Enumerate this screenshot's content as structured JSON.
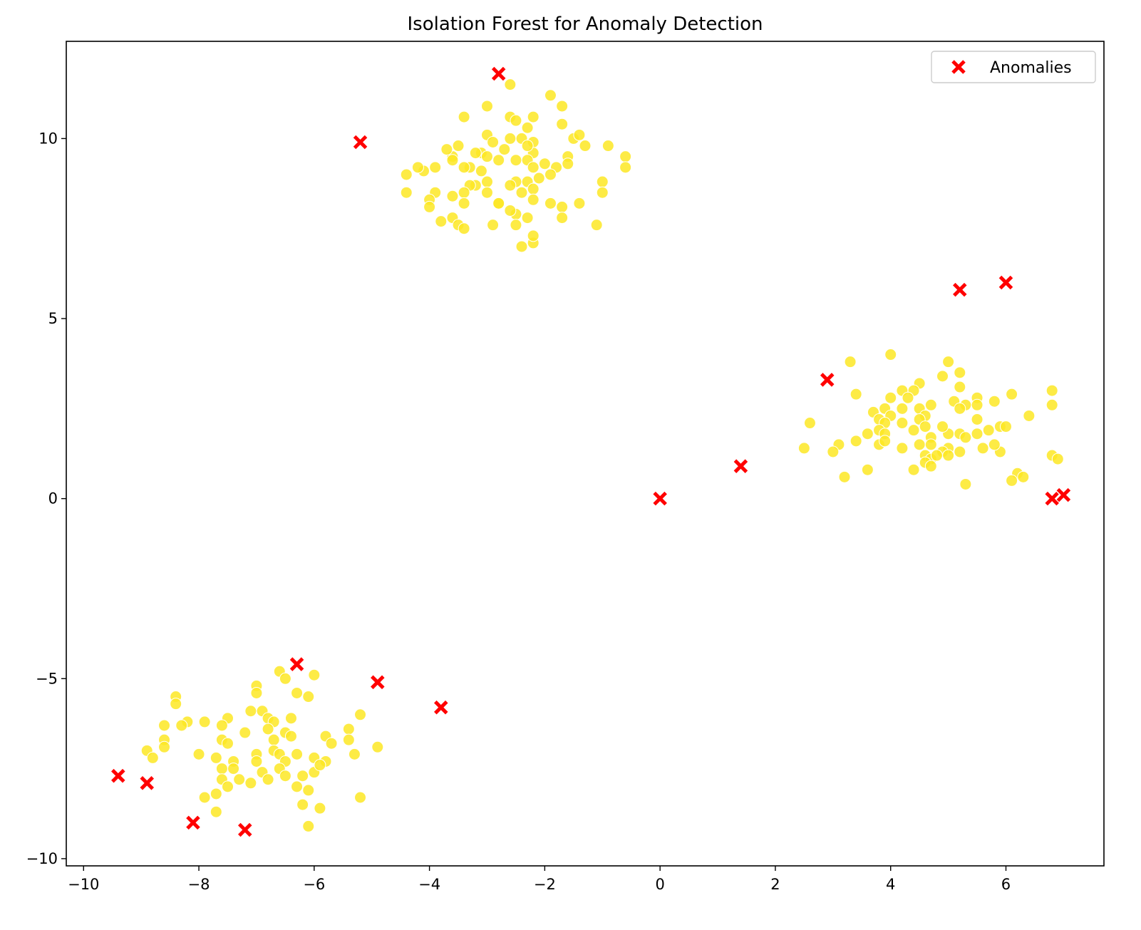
{
  "chart_data": {
    "type": "scatter",
    "title": "Isolation Forest for Anomaly Detection",
    "xlabel": "",
    "ylabel": "",
    "xlim": [
      -10.3,
      7.7
    ],
    "ylim": [
      -10.2,
      12.7
    ],
    "x_ticks": [
      -10,
      -8,
      -6,
      -4,
      -2,
      0,
      2,
      4,
      6
    ],
    "y_ticks": [
      -10,
      -5,
      0,
      5,
      10
    ],
    "x_tick_labels": [
      "−10",
      "−8",
      "−6",
      "−4",
      "−2",
      "0",
      "2",
      "4",
      "6"
    ],
    "y_tick_labels": [
      "−10",
      "−5",
      "0",
      "5",
      "10"
    ],
    "grid": false,
    "legend": {
      "placement": "top-right",
      "entries": [
        "Anomalies"
      ]
    },
    "colors": {
      "normal": "#fde725",
      "anomaly": "#ff0000"
    },
    "series": [
      {
        "role": "normal",
        "marker": "circle",
        "points": [
          [
            -2.6,
            11.5
          ],
          [
            -1.9,
            11.2
          ],
          [
            -1.7,
            10.9
          ],
          [
            -3.0,
            10.9
          ],
          [
            -3.4,
            10.6
          ],
          [
            -2.6,
            10.6
          ],
          [
            -2.2,
            10.6
          ],
          [
            -1.7,
            10.4
          ],
          [
            -2.3,
            10.3
          ],
          [
            -2.5,
            10.5
          ],
          [
            -3.0,
            10.1
          ],
          [
            -2.6,
            10.0
          ],
          [
            -2.4,
            10.0
          ],
          [
            -2.2,
            9.9
          ],
          [
            -1.5,
            10.0
          ],
          [
            -1.4,
            10.1
          ],
          [
            -1.3,
            9.8
          ],
          [
            -0.9,
            9.8
          ],
          [
            -0.6,
            9.5
          ],
          [
            -0.6,
            9.2
          ],
          [
            -1.6,
            9.5
          ],
          [
            -1.6,
            9.3
          ],
          [
            -1.8,
            9.2
          ],
          [
            -2.0,
            9.3
          ],
          [
            -2.2,
            9.6
          ],
          [
            -2.3,
            9.4
          ],
          [
            -2.5,
            9.4
          ],
          [
            -2.7,
            9.7
          ],
          [
            -2.9,
            9.9
          ],
          [
            -3.1,
            9.6
          ],
          [
            -3.2,
            9.6
          ],
          [
            -3.5,
            9.8
          ],
          [
            -3.6,
            9.5
          ],
          [
            -3.7,
            9.7
          ],
          [
            -3.9,
            9.2
          ],
          [
            -4.1,
            9.1
          ],
          [
            -4.2,
            9.2
          ],
          [
            -4.4,
            9.0
          ],
          [
            -3.0,
            9.5
          ],
          [
            -2.8,
            9.4
          ],
          [
            -2.3,
            9.8
          ],
          [
            -2.2,
            9.2
          ],
          [
            -3.3,
            9.2
          ],
          [
            -3.1,
            9.1
          ],
          [
            -3.6,
            9.4
          ],
          [
            -3.4,
            9.2
          ],
          [
            -2.1,
            8.9
          ],
          [
            -1.9,
            9.0
          ],
          [
            -2.3,
            8.8
          ],
          [
            -2.5,
            8.8
          ],
          [
            -2.6,
            8.7
          ],
          [
            -3.0,
            8.8
          ],
          [
            -3.2,
            8.7
          ],
          [
            -3.3,
            8.7
          ],
          [
            -3.4,
            8.5
          ],
          [
            -3.6,
            8.4
          ],
          [
            -3.9,
            8.5
          ],
          [
            -4.4,
            8.5
          ],
          [
            -4.0,
            8.3
          ],
          [
            -4.0,
            8.1
          ],
          [
            -3.4,
            8.2
          ],
          [
            -3.0,
            8.5
          ],
          [
            -2.8,
            8.2
          ],
          [
            -2.4,
            8.5
          ],
          [
            -2.2,
            8.6
          ],
          [
            -2.2,
            8.3
          ],
          [
            -1.9,
            8.2
          ],
          [
            -1.7,
            8.1
          ],
          [
            -1.4,
            8.2
          ],
          [
            -1.0,
            8.8
          ],
          [
            -1.0,
            8.5
          ],
          [
            -1.1,
            7.6
          ],
          [
            -1.7,
            7.8
          ],
          [
            -2.3,
            7.8
          ],
          [
            -2.5,
            7.9
          ],
          [
            -2.6,
            8.0
          ],
          [
            -2.5,
            7.6
          ],
          [
            -2.8,
            8.2
          ],
          [
            -3.6,
            7.8
          ],
          [
            -3.8,
            7.7
          ],
          [
            -3.5,
            7.6
          ],
          [
            -3.4,
            7.5
          ],
          [
            -2.9,
            7.6
          ],
          [
            -2.4,
            7.0
          ],
          [
            -2.2,
            7.1
          ],
          [
            -2.2,
            7.3
          ],
          [
            4.0,
            4.0
          ],
          [
            5.0,
            3.8
          ],
          [
            3.3,
            3.8
          ],
          [
            5.2,
            3.5
          ],
          [
            4.9,
            3.4
          ],
          [
            5.2,
            3.1
          ],
          [
            4.5,
            3.2
          ],
          [
            4.4,
            3.0
          ],
          [
            4.2,
            3.0
          ],
          [
            6.8,
            3.0
          ],
          [
            6.1,
            2.9
          ],
          [
            3.4,
            2.9
          ],
          [
            4.0,
            2.8
          ],
          [
            4.3,
            2.8
          ],
          [
            5.5,
            2.8
          ],
          [
            5.8,
            2.7
          ],
          [
            5.1,
            2.7
          ],
          [
            5.3,
            2.6
          ],
          [
            5.5,
            2.6
          ],
          [
            4.7,
            2.6
          ],
          [
            4.5,
            2.5
          ],
          [
            4.2,
            2.5
          ],
          [
            3.7,
            2.4
          ],
          [
            3.9,
            2.5
          ],
          [
            5.2,
            2.5
          ],
          [
            6.4,
            2.3
          ],
          [
            6.8,
            2.6
          ],
          [
            4.6,
            2.3
          ],
          [
            4.5,
            2.2
          ],
          [
            4.0,
            2.3
          ],
          [
            3.8,
            2.2
          ],
          [
            3.9,
            2.1
          ],
          [
            4.2,
            2.1
          ],
          [
            2.6,
            2.1
          ],
          [
            5.5,
            2.2
          ],
          [
            5.5,
            1.8
          ],
          [
            5.7,
            1.9
          ],
          [
            5.9,
            2.0
          ],
          [
            6.0,
            2.0
          ],
          [
            5.0,
            1.8
          ],
          [
            4.6,
            2.0
          ],
          [
            4.4,
            1.9
          ],
          [
            4.9,
            2.0
          ],
          [
            3.8,
            1.9
          ],
          [
            3.9,
            1.8
          ],
          [
            3.6,
            1.8
          ],
          [
            4.7,
            1.7
          ],
          [
            5.2,
            1.8
          ],
          [
            5.3,
            1.7
          ],
          [
            4.5,
            1.5
          ],
          [
            4.7,
            1.5
          ],
          [
            5.0,
            1.4
          ],
          [
            5.2,
            1.3
          ],
          [
            3.8,
            1.5
          ],
          [
            3.9,
            1.6
          ],
          [
            3.4,
            1.6
          ],
          [
            3.1,
            1.5
          ],
          [
            3.0,
            1.3
          ],
          [
            2.5,
            1.4
          ],
          [
            4.9,
            1.3
          ],
          [
            5.0,
            1.2
          ],
          [
            4.6,
            1.2
          ],
          [
            4.7,
            1.1
          ],
          [
            4.6,
            1.0
          ],
          [
            4.7,
            0.9
          ],
          [
            4.8,
            1.2
          ],
          [
            5.9,
            1.3
          ],
          [
            5.8,
            1.5
          ],
          [
            5.6,
            1.4
          ],
          [
            6.8,
            1.2
          ],
          [
            6.9,
            1.1
          ],
          [
            4.4,
            0.8
          ],
          [
            3.6,
            0.8
          ],
          [
            3.2,
            0.6
          ],
          [
            6.2,
            0.7
          ],
          [
            6.3,
            0.6
          ],
          [
            6.1,
            0.5
          ],
          [
            5.3,
            0.4
          ],
          [
            4.2,
            1.4
          ],
          [
            -6.6,
            -4.8
          ],
          [
            -6.5,
            -5.0
          ],
          [
            -6.0,
            -4.9
          ],
          [
            -7.0,
            -5.2
          ],
          [
            -7.0,
            -5.4
          ],
          [
            -6.3,
            -5.4
          ],
          [
            -6.1,
            -5.5
          ],
          [
            -8.4,
            -5.5
          ],
          [
            -8.4,
            -5.7
          ],
          [
            -7.1,
            -5.9
          ],
          [
            -6.9,
            -5.9
          ],
          [
            -5.2,
            -6.0
          ],
          [
            -6.8,
            -6.1
          ],
          [
            -7.5,
            -6.1
          ],
          [
            -8.2,
            -6.2
          ],
          [
            -7.9,
            -6.2
          ],
          [
            -8.3,
            -6.3
          ],
          [
            -8.6,
            -6.3
          ],
          [
            -7.6,
            -6.3
          ],
          [
            -6.4,
            -6.1
          ],
          [
            -6.7,
            -6.2
          ],
          [
            -6.8,
            -6.4
          ],
          [
            -7.2,
            -6.5
          ],
          [
            -6.5,
            -6.5
          ],
          [
            -6.4,
            -6.6
          ],
          [
            -6.7,
            -6.7
          ],
          [
            -5.8,
            -6.6
          ],
          [
            -5.4,
            -6.4
          ],
          [
            -5.4,
            -6.7
          ],
          [
            -8.6,
            -6.7
          ],
          [
            -8.6,
            -6.9
          ],
          [
            -7.6,
            -6.7
          ],
          [
            -7.5,
            -6.8
          ],
          [
            -8.9,
            -7.0
          ],
          [
            -8.8,
            -7.2
          ],
          [
            -8.0,
            -7.1
          ],
          [
            -7.7,
            -7.2
          ],
          [
            -7.4,
            -7.3
          ],
          [
            -7.0,
            -7.1
          ],
          [
            -6.7,
            -7.0
          ],
          [
            -6.6,
            -7.1
          ],
          [
            -6.5,
            -7.3
          ],
          [
            -6.3,
            -7.1
          ],
          [
            -6.0,
            -7.2
          ],
          [
            -5.8,
            -7.3
          ],
          [
            -5.7,
            -6.8
          ],
          [
            -5.3,
            -7.1
          ],
          [
            -4.9,
            -6.9
          ],
          [
            -7.6,
            -7.5
          ],
          [
            -7.4,
            -7.5
          ],
          [
            -7.0,
            -7.3
          ],
          [
            -6.9,
            -7.6
          ],
          [
            -6.6,
            -7.5
          ],
          [
            -6.5,
            -7.7
          ],
          [
            -6.2,
            -7.7
          ],
          [
            -6.0,
            -7.6
          ],
          [
            -7.6,
            -7.8
          ],
          [
            -7.3,
            -7.8
          ],
          [
            -7.1,
            -7.9
          ],
          [
            -6.8,
            -7.8
          ],
          [
            -7.5,
            -8.0
          ],
          [
            -7.7,
            -8.2
          ],
          [
            -7.9,
            -8.3
          ],
          [
            -6.3,
            -8.0
          ],
          [
            -6.1,
            -8.1
          ],
          [
            -5.9,
            -7.4
          ],
          [
            -5.2,
            -8.3
          ],
          [
            -6.2,
            -8.5
          ],
          [
            -5.9,
            -8.6
          ],
          [
            -7.7,
            -8.7
          ],
          [
            -6.1,
            -9.1
          ]
        ]
      },
      {
        "name": "Anomalies",
        "role": "anomaly",
        "marker": "x",
        "points": [
          [
            -2.8,
            11.8
          ],
          [
            -5.2,
            9.9
          ],
          [
            5.2,
            5.8
          ],
          [
            6.0,
            6.0
          ],
          [
            2.9,
            3.3
          ],
          [
            1.4,
            0.9
          ],
          [
            0.0,
            0.0
          ],
          [
            6.8,
            0.0
          ],
          [
            7.0,
            0.1
          ],
          [
            -6.3,
            -4.6
          ],
          [
            -4.9,
            -5.1
          ],
          [
            -3.8,
            -5.8
          ],
          [
            -9.4,
            -7.7
          ],
          [
            -8.9,
            -7.9
          ],
          [
            -8.1,
            -9.0
          ],
          [
            -7.2,
            -9.2
          ]
        ]
      }
    ]
  }
}
